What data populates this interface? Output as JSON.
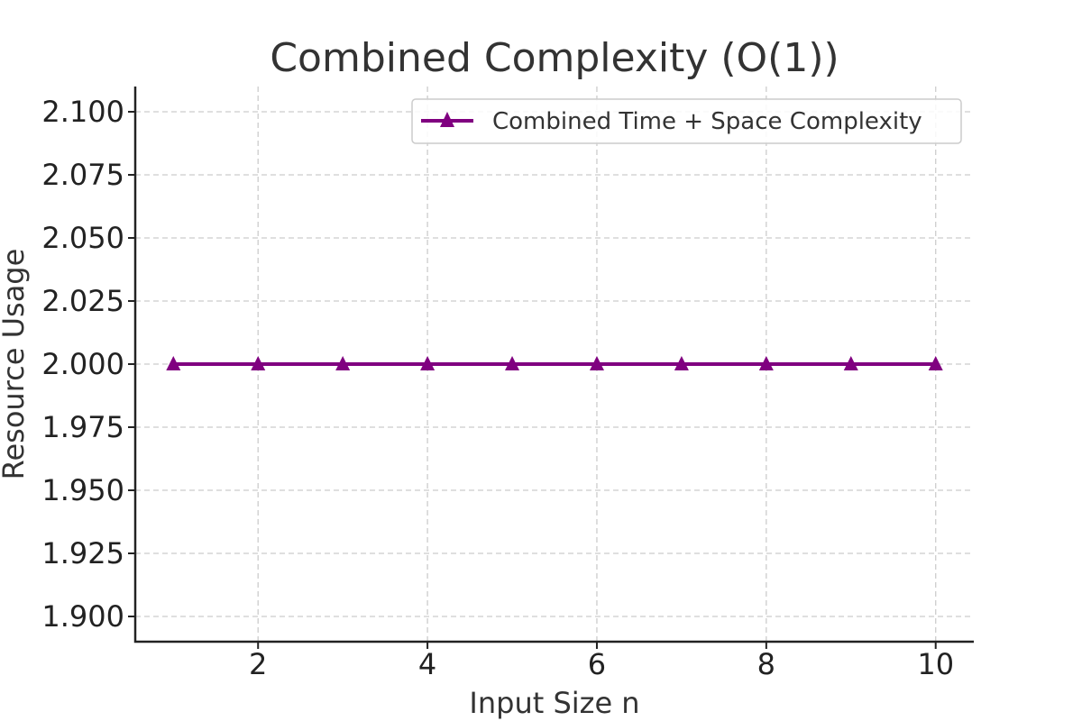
{
  "chart_data": {
    "type": "line",
    "title": "Combined Complexity (O(1))",
    "xlabel": "Input Size n",
    "ylabel": "Resource Usage",
    "xlim": [
      0.55,
      10.45
    ],
    "ylim": [
      1.89,
      2.11
    ],
    "x_ticks": [
      2,
      4,
      6,
      8,
      10
    ],
    "x_tick_labels": [
      "2",
      "4",
      "6",
      "8",
      "10"
    ],
    "y_ticks": [
      1.9,
      1.925,
      1.95,
      1.975,
      2.0,
      2.025,
      2.05,
      2.075,
      2.1
    ],
    "y_tick_labels": [
      "1.900",
      "1.925",
      "1.950",
      "1.975",
      "2.000",
      "2.025",
      "2.050",
      "2.075",
      "2.100"
    ],
    "grid": true,
    "legend_position": "top-right",
    "series": [
      {
        "name": "Combined Time + Space Complexity",
        "color": "#800080",
        "marker": "triangle",
        "x": [
          1,
          2,
          3,
          4,
          5,
          6,
          7,
          8,
          9,
          10
        ],
        "y": [
          2,
          2,
          2,
          2,
          2,
          2,
          2,
          2,
          2,
          2
        ]
      }
    ]
  }
}
